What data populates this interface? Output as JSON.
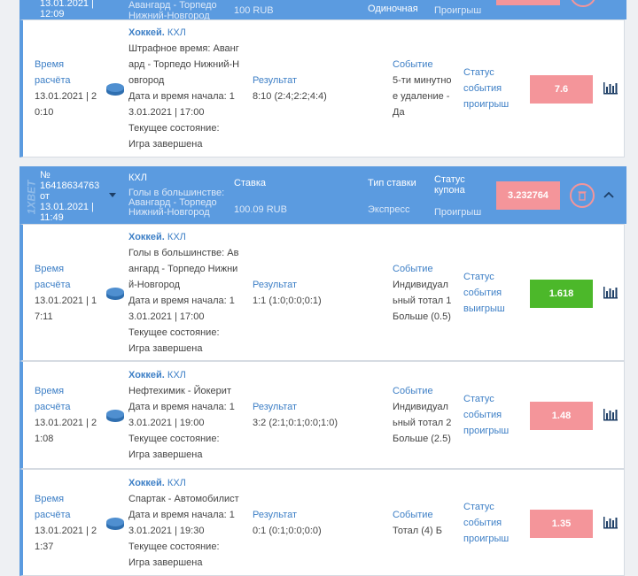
{
  "top_coupon": {
    "date": "13.01.2021 | 12:09",
    "event": "Авангард - Торпедо Нижний-Новгород",
    "stake": "100 RUB",
    "bet_type": "Одиночная",
    "status": "Проигрыш"
  },
  "coupon": {
    "number_label": "№",
    "number": "16418634763",
    "from": "от",
    "date": "13.01.2021 | 11:49",
    "watermark": "1XBET",
    "league": "КХЛ",
    "event": "Голы в большинстве: Авангард - Торпедо Нижний-Новгород",
    "stake_label": "Ставка",
    "stake": "100.09 RUB",
    "bet_type_label": "Тип ставки",
    "bet_type": "Экспресс",
    "status_label": "Статус купона",
    "status": "Проигрыш",
    "odds": "3.232764"
  },
  "labels": {
    "settled": "Время расчёта",
    "sport": "Хоккей.",
    "league": "КХЛ",
    "start": "Дата и время начала:",
    "state": "Текущее состояние:",
    "state_value": "Игра завершена",
    "result": "Результат",
    "event": "Событие",
    "status": "Статус события"
  },
  "bets": [
    {
      "settled": "13.01.2021 | 20:10",
      "title": "Штрафное время: Авангард - Торпедо Нижний-Новгород",
      "start": "13.01.2021 | 17:00",
      "result": "8:10 (2:4;2:2;4:4)",
      "event": "5-ти минутное удаление - Да",
      "status": "проигрыш",
      "odds": "7.6",
      "won": false
    },
    {
      "settled": "13.01.2021 | 17:11",
      "title": "Голы в большинстве: Авангард - Торпедо Нижний-Новгород",
      "start": "13.01.2021 | 17:00",
      "result": "1:1 (1:0;0:0;0:1)",
      "event": "Индивидуальный тотал 1 Больше (0.5)",
      "status": "выигрыш",
      "odds": "1.618",
      "won": true
    },
    {
      "settled": "13.01.2021 | 21:08",
      "title": "Нефтехимик - Йокерит",
      "start": "13.01.2021 | 19:00",
      "result": "3:2 (2:1;0:1;0:0;1:0)",
      "event": "Индивидуальный тотал 2 Больше (2.5)",
      "status": "проигрыш",
      "odds": "1.48",
      "won": false
    },
    {
      "settled": "13.01.2021 | 21:37",
      "title": "Спартак - Автомобилист",
      "start": "13.01.2021 | 19:30",
      "result": "0:1 (0:1;0:0;0:0)",
      "event": "Тотал (4) Б",
      "status": "проигрыш",
      "odds": "1.35",
      "won": false
    }
  ]
}
